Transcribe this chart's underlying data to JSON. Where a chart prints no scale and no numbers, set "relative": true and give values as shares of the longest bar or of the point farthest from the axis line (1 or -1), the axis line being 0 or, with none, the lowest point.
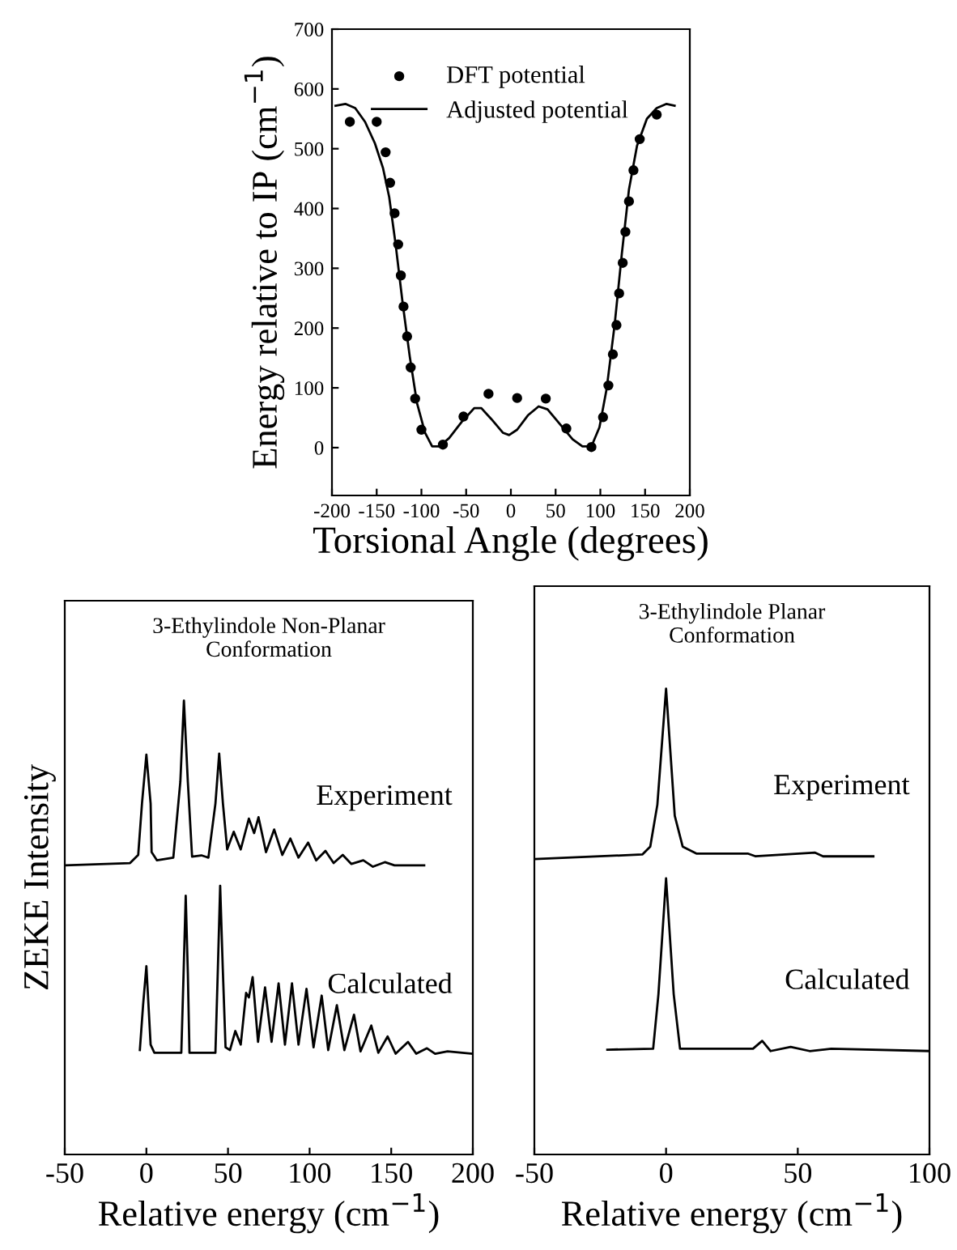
{
  "chart_data": [
    {
      "type": "line",
      "xlabel": "Torsional Angle (degrees)",
      "ylabel": "Energy relative to IP (cm$^{−1}$)",
      "xlim": [
        -200,
        200
      ],
      "xticks": [
        -200,
        -150,
        -100,
        -50,
        0,
        50,
        100,
        150,
        200
      ],
      "ylim": [
        -80,
        700
      ],
      "yticks": [
        0,
        100,
        200,
        300,
        400,
        500,
        600,
        700
      ],
      "legend": "top",
      "grid": false,
      "series": [
        {
          "name": "DFT potential",
          "type": "scatter",
          "marker": "circle",
          "color": "#000000",
          "x": [
            -180,
            -150,
            -140,
            -135,
            -130,
            -126,
            -123,
            -120,
            -116,
            -112,
            -107,
            -100,
            -76,
            -53,
            -25,
            7,
            39,
            62,
            90,
            103,
            109,
            114,
            118,
            121,
            125,
            128,
            132,
            137,
            144,
            163
          ],
          "values": [
            545,
            545,
            494,
            443,
            392,
            340,
            288,
            236,
            186,
            134,
            82,
            30,
            5,
            52,
            90,
            83,
            82,
            32,
            1,
            51,
            104,
            156,
            205,
            258,
            309,
            361,
            412,
            464,
            516,
            557
          ]
        },
        {
          "name": "Adjusted potential",
          "type": "line",
          "color": "#000000",
          "x": [
            -196,
            -185,
            -174,
            -163,
            -152,
            -143,
            -136,
            -129,
            -121,
            -113,
            -105,
            -96,
            -88,
            -80,
            -69,
            -55,
            -41,
            -33,
            -22,
            -9,
            -2,
            7,
            19,
            31,
            41,
            55,
            69,
            80,
            90,
            99,
            107,
            116,
            124,
            132,
            141,
            152,
            163,
            174,
            183
          ],
          "values": [
            572,
            575,
            568,
            545,
            509,
            468,
            419,
            342,
            242,
            152,
            75,
            25,
            2,
            2,
            16,
            43,
            66,
            66,
            48,
            25,
            21,
            30,
            54,
            69,
            64,
            39,
            14,
            2,
            2,
            34,
            98,
            206,
            324,
            432,
            505,
            550,
            568,
            575,
            572
          ]
        }
      ]
    },
    {
      "type": "line",
      "relative": true,
      "title": "3-Ethylindole Non-Planar\nConformation",
      "xlabel": "Relative energy (cm$^{−1}$)",
      "ylabel": "ZEKE Intensity",
      "xlim": [
        -50,
        200
      ],
      "xticks": [
        -50,
        0,
        50,
        100,
        150,
        200
      ],
      "tick_labels": "x",
      "grid": false,
      "series": [
        {
          "name": "Experiment",
          "color": "#000000",
          "x": [
            -50,
            -10,
            -5,
            -2.7,
            0,
            2.6,
            3.2,
            6.5,
            16.5,
            20.8,
            23,
            25.4,
            28,
            33.7,
            38,
            42.3,
            44.6,
            46.9,
            49.5,
            53.5,
            57.8,
            62.8,
            66,
            68.7,
            73.3,
            78.3,
            83.3,
            88.2,
            93.2,
            99.1,
            104,
            109.7,
            114.7,
            120.3,
            125.6,
            132.9,
            138.8,
            146.1,
            152,
            170.2
          ],
          "values": [
            0.637,
            0.642,
            0.66,
            0.773,
            0.881,
            0.773,
            0.666,
            0.648,
            0.654,
            0.821,
            1.0,
            0.821,
            0.656,
            0.659,
            0.654,
            0.773,
            0.883,
            0.773,
            0.672,
            0.711,
            0.672,
            0.74,
            0.708,
            0.743,
            0.666,
            0.716,
            0.66,
            0.696,
            0.654,
            0.687,
            0.648,
            0.669,
            0.642,
            0.66,
            0.64,
            0.648,
            0.634,
            0.644,
            0.637,
            0.637
          ]
        },
        {
          "name": "Calculated",
          "color": "#000000",
          "x": [
            -4,
            -2,
            0,
            2.6,
            4.9,
            21.4,
            22.8,
            24.1,
            25.4,
            26.4,
            42.3,
            43.8,
            45.2,
            46.8,
            48.5,
            51.2,
            54.5,
            57.8,
            61.1,
            62.8,
            65.1,
            68.4,
            72.7,
            76.7,
            81,
            84.9,
            89.2,
            93.2,
            98.1,
            102.4,
            107.4,
            111.4,
            116.7,
            121.3,
            127.2,
            131.2,
            137.8,
            142.1,
            147.8,
            152.7,
            160.3,
            165.3,
            171.9,
            176.9,
            184.5,
            200
          ],
          "values": [
            0.23,
            0.33,
            0.415,
            0.242,
            0.224,
            0.224,
            0.4,
            0.57,
            0.4,
            0.224,
            0.224,
            0.41,
            0.592,
            0.41,
            0.236,
            0.23,
            0.272,
            0.242,
            0.356,
            0.346,
            0.391,
            0.248,
            0.368,
            0.248,
            0.377,
            0.242,
            0.377,
            0.242,
            0.365,
            0.236,
            0.35,
            0.23,
            0.329,
            0.23,
            0.308,
            0.227,
            0.284,
            0.224,
            0.26,
            0.222,
            0.248,
            0.222,
            0.234,
            0.222,
            0.227,
            0.222
          ]
        }
      ]
    },
    {
      "type": "line",
      "relative": true,
      "title": "3-Ethylindole Planar\nConformation",
      "xlabel": "Relative energy (cm$^{−1}$)",
      "xlim": [
        -50,
        100
      ],
      "xticks": [
        -50,
        0,
        50,
        100
      ],
      "tick_labels": "x",
      "grid": false,
      "series": [
        {
          "name": "Experiment",
          "color": "#000000",
          "x": [
            -50,
            -9,
            -6,
            -3.3,
            0,
            3.3,
            6.3,
            11.5,
            31,
            34,
            56.6,
            59.6,
            78.7
          ],
          "values": [
            0.634,
            0.644,
            0.661,
            0.751,
            1.0,
            0.727,
            0.661,
            0.646,
            0.646,
            0.64,
            0.648,
            0.64,
            0.64
          ]
        },
        {
          "name": "Calculated",
          "color": "#000000",
          "x": [
            -22.3,
            -4.9,
            -2.9,
            0,
            2.9,
            5.3,
            33,
            36.5,
            39.7,
            47.3,
            54.5,
            62.7,
            100
          ],
          "values": [
            0.225,
            0.227,
            0.344,
            0.593,
            0.344,
            0.227,
            0.227,
            0.244,
            0.222,
            0.231,
            0.222,
            0.227,
            0.222
          ]
        }
      ]
    }
  ]
}
